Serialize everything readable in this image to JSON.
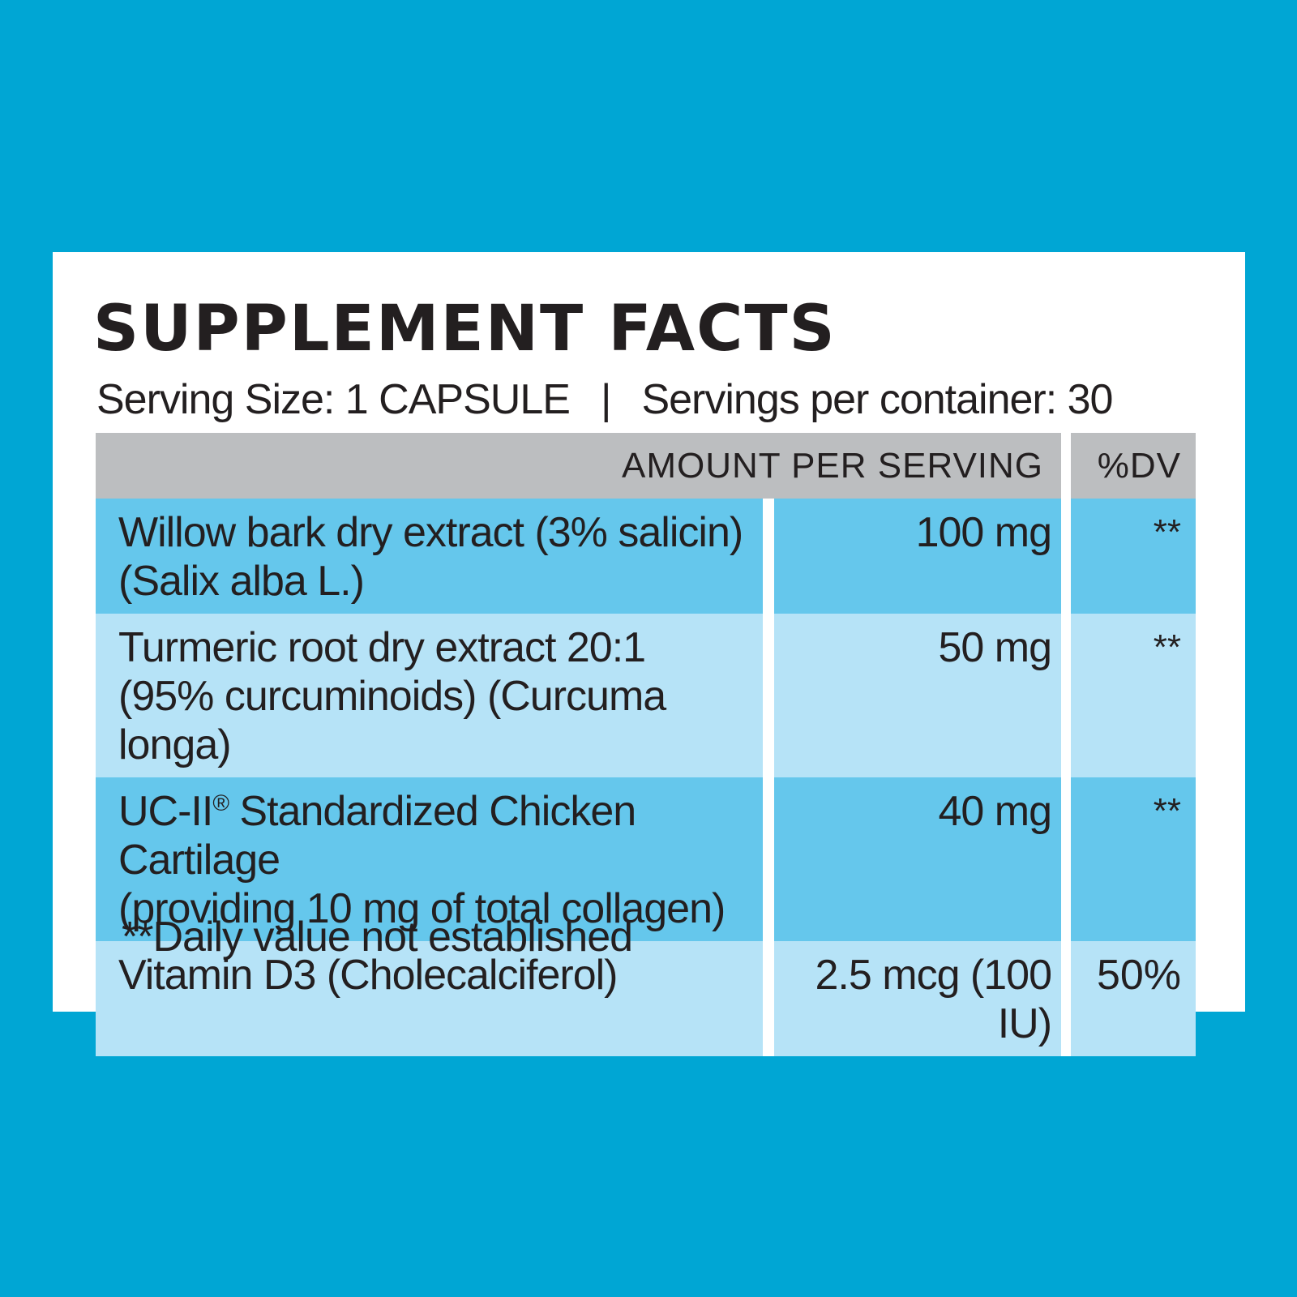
{
  "label": {
    "title": "SUPPLEMENT FACTS",
    "serving_size": "Serving Size: 1 CAPSULE",
    "separator": "|",
    "servings_per_container": "Servings per container: 30"
  },
  "table": {
    "headers": {
      "amount": "AMOUNT PER SERVING",
      "dv": "%DV"
    },
    "rows": [
      {
        "line1": "Willow bark dry extract (3% salicin)",
        "line2": "(Salix alba L.)",
        "amount": "100 mg",
        "dv": "**"
      },
      {
        "line1": "Turmeric root dry extract 20:1",
        "line2": "(95% curcuminoids) (Curcuma longa)",
        "amount": "50 mg",
        "dv": "**"
      },
      {
        "line1_prefix": "UC-II",
        "line1_mark": "®",
        "line1_suffix": " Standardized Chicken Cartilage",
        "line2": "(providing 10 mg of total collagen)",
        "amount": "40 mg",
        "dv": "**"
      },
      {
        "line1": "Vitamin D3 (Cholecalciferol)",
        "amount": "2.5 mcg (100 IU)",
        "dv": "50%"
      }
    ]
  },
  "footnote": "**Daily value not established",
  "colors": {
    "background": "#00a6d4",
    "card": "#ffffff",
    "header_gray": "#bcbec0",
    "row_dark": "#65c7ec",
    "row_light": "#b6e3f7",
    "text": "#231f20"
  }
}
